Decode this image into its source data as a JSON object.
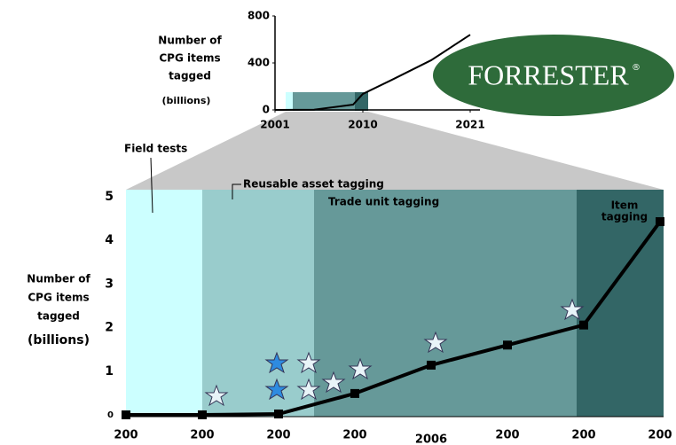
{
  "chart_data": [
    {
      "type": "line",
      "y_label": [
        "Number of",
        "CPG items",
        "tagged",
        "(billions)"
      ],
      "annotations": [
        "Field tests",
        "Reusable asset tagging",
        "Trade unit tagging",
        "Item",
        "tagging"
      ],
      "categories": [
        "200",
        "200",
        "200",
        "200",
        "2006",
        "200",
        "200",
        "200"
      ],
      "values": [
        0,
        0,
        0.02,
        0.49,
        1.14,
        1.6,
        2.06,
        4.43
      ],
      "color": "#000000",
      "ylim": [
        0,
        5
      ],
      "yticks": [
        0,
        1,
        2,
        3,
        4,
        5
      ]
    },
    {
      "type": "line",
      "y_label": [
        "Number of",
        "CPG items",
        "tagged",
        "(billions)"
      ],
      "logo": "FORRESTER",
      "logo_mark": "®",
      "x": [
        2001,
        2005,
        2009,
        2010,
        2013,
        2017,
        2021
      ],
      "values": [
        0,
        2,
        45,
        136,
        257,
        423,
        640
      ],
      "color": "#000000",
      "xlim": [
        2001,
        2022
      ],
      "xticks": [
        2001,
        2010,
        2021
      ],
      "ylim": [
        0,
        800
      ],
      "yticks": [
        0,
        400,
        800
      ]
    }
  ]
}
